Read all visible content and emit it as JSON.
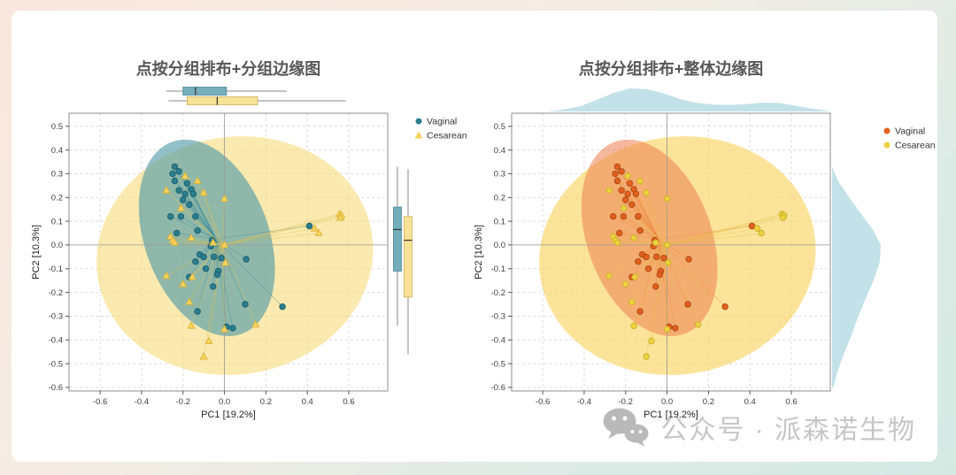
{
  "page": {
    "watermark": {
      "text": "公众号 · 派森诺生物",
      "icon": "wechat-icon",
      "color": "#c6c6c6"
    }
  },
  "chart_data": {
    "type": "scatter",
    "shared": {
      "xlabel": "PC1 [19.2%]",
      "ylabel": "PC2 [10.3%]",
      "xlim": [
        -0.75,
        0.788
      ],
      "ylim": [
        -0.615,
        0.555
      ],
      "xticks": [
        -0.6,
        -0.4,
        -0.2,
        0,
        0.2,
        0.4,
        0.6
      ],
      "yticks": [
        0.5,
        0.4,
        0.3,
        0.2,
        0.1,
        0,
        -0.1,
        -0.2,
        -0.3,
        -0.4,
        -0.5,
        -0.6
      ],
      "grid": true,
      "groups": [
        {
          "id": "vaginal",
          "label": "Vaginal",
          "centroid": [
            -0.04,
            0.025
          ],
          "ellipse": {
            "cx": -0.085,
            "cy": 0.03,
            "rx": 0.3,
            "ry": 0.43,
            "rot": -20
          },
          "points": [
            [
              -0.24,
              0.33
            ],
            [
              -0.25,
              0.3
            ],
            [
              -0.22,
              0.31
            ],
            [
              -0.24,
              0.27
            ],
            [
              -0.18,
              0.26
            ],
            [
              -0.22,
              0.23
            ],
            [
              -0.16,
              0.235
            ],
            [
              -0.15,
              0.215
            ],
            [
              -0.19,
              0.215
            ],
            [
              -0.2,
              0.19
            ],
            [
              -0.17,
              0.17
            ],
            [
              -0.26,
              0.12
            ],
            [
              -0.21,
              0.12
            ],
            [
              -0.14,
              0.12
            ],
            [
              -0.23,
              0.05
            ],
            [
              -0.13,
              0.06
            ],
            [
              -0.06,
              0.02
            ],
            [
              -0.065,
              -0.005
            ],
            [
              -0.12,
              -0.04
            ],
            [
              -0.1,
              -0.05
            ],
            [
              -0.14,
              -0.07
            ],
            [
              -0.05,
              -0.05
            ],
            [
              -0.015,
              -0.055
            ],
            [
              0.105,
              -0.06
            ],
            [
              -0.03,
              -0.11
            ],
            [
              -0.09,
              -0.1
            ],
            [
              -0.17,
              -0.135
            ],
            [
              -0.035,
              -0.125
            ],
            [
              -0.055,
              -0.175
            ],
            [
              0.1,
              -0.25
            ],
            [
              0.28,
              -0.26
            ],
            [
              -0.13,
              -0.28
            ],
            [
              0.01,
              -0.345
            ],
            [
              0.04,
              -0.35
            ],
            [
              0.41,
              0.08
            ]
          ]
        },
        {
          "id": "cesarean",
          "label": "Cesarean",
          "centroid": [
            -0.01,
            0.0
          ],
          "ellipse": {
            "cx": 0.05,
            "cy": -0.045,
            "rx": 0.67,
            "ry": 0.5,
            "rot": -10
          },
          "points": [
            [
              -0.19,
              0.29
            ],
            [
              -0.13,
              0.27
            ],
            [
              -0.28,
              0.23
            ],
            [
              -0.1,
              0.22
            ],
            [
              0.0,
              0.195
            ],
            [
              -0.21,
              0.155
            ],
            [
              -0.26,
              0.035
            ],
            [
              -0.25,
              0.02
            ],
            [
              -0.24,
              0.01
            ],
            [
              -0.16,
              0.03
            ],
            [
              -0.055,
              0.01
            ],
            [
              0.0,
              0.0
            ],
            [
              0.005,
              -0.075
            ],
            [
              -0.155,
              -0.135
            ],
            [
              -0.28,
              -0.13
            ],
            [
              -0.2,
              -0.165
            ],
            [
              -0.17,
              -0.24
            ],
            [
              -0.16,
              -0.34
            ],
            [
              0.0,
              -0.355
            ],
            [
              0.15,
              -0.335
            ],
            [
              -0.075,
              -0.405
            ],
            [
              -0.1,
              -0.47
            ],
            [
              0.555,
              0.13
            ],
            [
              0.565,
              0.125
            ],
            [
              0.56,
              0.115
            ],
            [
              0.435,
              0.07
            ],
            [
              0.455,
              0.05
            ]
          ]
        }
      ]
    },
    "charts": [
      {
        "title": "点按分组排布+分组边缘图",
        "marginal": "group_boxplots",
        "legend": [
          {
            "label": "Vaginal",
            "color": "#2b7e8d",
            "marker": "circle"
          },
          {
            "label": "Cesarean",
            "color": "#f6d35c",
            "marker": "triangle"
          }
        ],
        "style": {
          "vaginal": {
            "point": "#2b7e8d",
            "stroke": "#14596a",
            "marker": "circle",
            "ellipse_fill": "#4f9aa8",
            "ellipse_opacity": 0.62,
            "line": "#3d8d9b"
          },
          "cesarean": {
            "point": "#f6d35c",
            "stroke": "#d9ae38",
            "marker": "triangle",
            "ellipse_fill": "#f6d96e",
            "ellipse_opacity": 0.55,
            "line": "#dfc04f"
          }
        },
        "top_boxplots": [
          {
            "color": "#74aebb",
            "stroke": "#49889a",
            "lo": -0.28,
            "q1": -0.2,
            "med": -0.14,
            "q3": 0.01,
            "hi": 0.3
          },
          {
            "color": "#f8e296",
            "stroke": "#cbb05e",
            "lo": -0.27,
            "q1": -0.18,
            "med": -0.035,
            "q3": 0.16,
            "hi": 0.585
          }
        ],
        "right_boxplots": [
          {
            "color": "#74aebb",
            "stroke": "#49889a",
            "lo": -0.34,
            "q1": -0.11,
            "med": 0.065,
            "q3": 0.16,
            "hi": 0.33
          },
          {
            "color": "#f8e296",
            "stroke": "#cbb05e",
            "lo": -0.46,
            "q1": -0.22,
            "med": 0.02,
            "q3": 0.12,
            "hi": 0.32
          }
        ]
      },
      {
        "title": "点按分组排布+整体边缘图",
        "marginal": "overall_density",
        "legend": [
          {
            "label": "Vaginal",
            "color": "#e2601c",
            "marker": "circle"
          },
          {
            "label": "Cesarean",
            "color": "#ecd23f",
            "marker": "circle"
          }
        ],
        "style": {
          "vaginal": {
            "point": "#e2601c",
            "stroke": "#a84513",
            "marker": "circle",
            "ellipse_fill": "#ef8050",
            "ellipse_opacity": 0.55,
            "line": "#ec8a3e"
          },
          "cesarean": {
            "point": "#ecd23f",
            "stroke": "#c9a927",
            "marker": "circle",
            "ellipse_fill": "#f8d35c",
            "ellipse_opacity": 0.62,
            "line": "#e3bf45"
          }
        },
        "density_color": "#bfdfe7",
        "top_density": [
          [
            -0.58,
            0.0
          ],
          [
            -0.5,
            0.08
          ],
          [
            -0.42,
            0.22
          ],
          [
            -0.34,
            0.5
          ],
          [
            -0.26,
            0.8
          ],
          [
            -0.18,
            1.0
          ],
          [
            -0.1,
            0.97
          ],
          [
            -0.02,
            0.8
          ],
          [
            0.06,
            0.55
          ],
          [
            0.14,
            0.38
          ],
          [
            0.22,
            0.3
          ],
          [
            0.3,
            0.28
          ],
          [
            0.38,
            0.32
          ],
          [
            0.46,
            0.38
          ],
          [
            0.54,
            0.37
          ],
          [
            0.62,
            0.25
          ],
          [
            0.7,
            0.12
          ],
          [
            0.78,
            0.03
          ]
        ],
        "right_density": [
          [
            0.33,
            0.0
          ],
          [
            0.27,
            0.12
          ],
          [
            0.2,
            0.35
          ],
          [
            0.13,
            0.6
          ],
          [
            0.06,
            0.85
          ],
          [
            0.0,
            1.0
          ],
          [
            -0.07,
            0.98
          ],
          [
            -0.15,
            0.85
          ],
          [
            -0.23,
            0.68
          ],
          [
            -0.31,
            0.52
          ],
          [
            -0.39,
            0.38
          ],
          [
            -0.47,
            0.22
          ],
          [
            -0.54,
            0.1
          ],
          [
            -0.6,
            0.03
          ]
        ]
      }
    ]
  }
}
